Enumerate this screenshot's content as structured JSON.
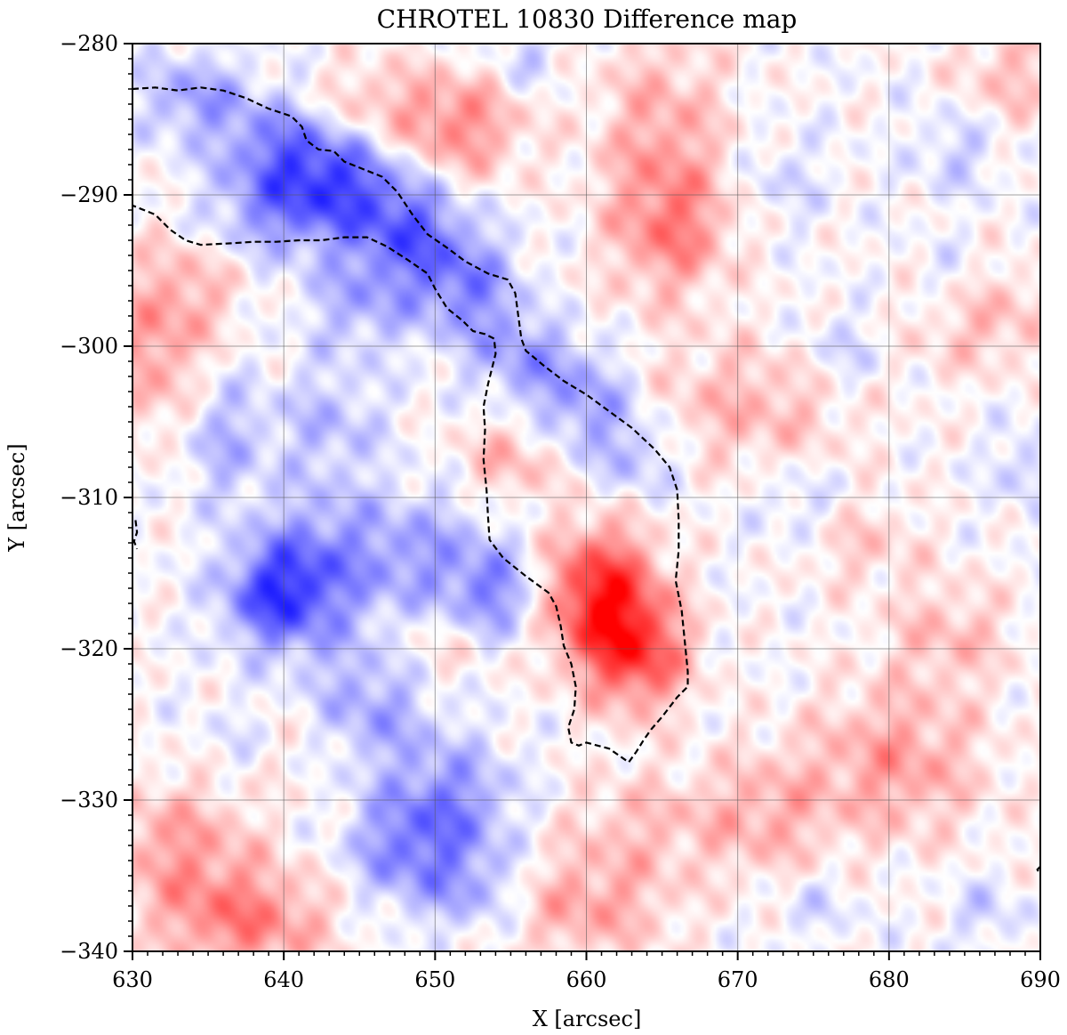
{
  "chart_data": {
    "type": "heatmap",
    "title": "CHROTEL 10830 Difference map",
    "xlabel": "X [arcsec]",
    "ylabel": "Y [arcsec]",
    "xlim": [
      630,
      690
    ],
    "ylim": [
      -340,
      -280
    ],
    "x_ticks": [
      630,
      640,
      650,
      660,
      670,
      680,
      690
    ],
    "y_ticks": [
      -280,
      -290,
      -300,
      -310,
      -320,
      -330,
      -340
    ],
    "x_tick_labels": [
      "630",
      "640",
      "650",
      "660",
      "670",
      "680",
      "690"
    ],
    "y_tick_labels": [
      "−280",
      "−290",
      "−300",
      "−310",
      "−320",
      "−330",
      "−340"
    ],
    "grid": true,
    "colormap": "bwr",
    "colors": {
      "positive": "#ff0000",
      "negative": "#0000ff",
      "zero": "#ffffff",
      "contour": "#000000",
      "grid": "#555555"
    },
    "intensity_blobs": [
      {
        "x": 661.0,
        "y": -316.5,
        "sx": 2.6,
        "sy": 3.2,
        "v": 0.85
      },
      {
        "x": 663.5,
        "y": -320.5,
        "sx": 2.4,
        "sy": 2.6,
        "v": 0.6
      },
      {
        "x": 651.5,
        "y": -285.5,
        "sx": 3.0,
        "sy": 2.5,
        "v": 0.45
      },
      {
        "x": 645.0,
        "y": -284.0,
        "sx": 3.0,
        "sy": 2.0,
        "v": 0.25
      },
      {
        "x": 665.0,
        "y": -288.0,
        "sx": 3.0,
        "sy": 6.0,
        "v": 0.38
      },
      {
        "x": 666.0,
        "y": -292.5,
        "sx": 2.5,
        "sy": 2.5,
        "v": 0.25
      },
      {
        "x": 686.0,
        "y": -298.0,
        "sx": 3.5,
        "sy": 2.5,
        "v": 0.3
      },
      {
        "x": 671.0,
        "y": -304.0,
        "sx": 5.0,
        "sy": 3.0,
        "v": 0.28
      },
      {
        "x": 680.5,
        "y": -327.5,
        "sx": 4.0,
        "sy": 3.5,
        "v": 0.38
      },
      {
        "x": 672.0,
        "y": -331.0,
        "sx": 3.0,
        "sy": 3.0,
        "v": 0.28
      },
      {
        "x": 684.0,
        "y": -319.0,
        "sx": 3.0,
        "sy": 2.5,
        "v": 0.25
      },
      {
        "x": 637.5,
        "y": -338.0,
        "sx": 4.0,
        "sy": 2.5,
        "v": 0.48
      },
      {
        "x": 633.0,
        "y": -333.0,
        "sx": 3.5,
        "sy": 3.0,
        "v": 0.35
      },
      {
        "x": 631.5,
        "y": -300.5,
        "sx": 2.5,
        "sy": 4.0,
        "v": 0.35
      },
      {
        "x": 634.0,
        "y": -296.0,
        "sx": 2.5,
        "sy": 2.5,
        "v": 0.2
      },
      {
        "x": 660.0,
        "y": -337.0,
        "sx": 4.0,
        "sy": 2.5,
        "v": 0.35
      },
      {
        "x": 655.0,
        "y": -307.5,
        "sx": 2.5,
        "sy": 2.0,
        "v": 0.3
      },
      {
        "x": 664.0,
        "y": -331.5,
        "sx": 4.0,
        "sy": 2.5,
        "v": 0.22
      },
      {
        "x": 678.0,
        "y": -313.0,
        "sx": 3.0,
        "sy": 2.0,
        "v": 0.2
      },
      {
        "x": 688.0,
        "y": -282.0,
        "sx": 2.5,
        "sy": 2.5,
        "v": 0.25
      },
      {
        "x": 641.5,
        "y": -326.0,
        "sx": 3.5,
        "sy": 2.5,
        "v": 0.15
      },
      {
        "x": 650.0,
        "y": -320.0,
        "sx": 2.5,
        "sy": 2.0,
        "v": 0.18
      },
      {
        "x": 657.0,
        "y": -298.0,
        "sx": 2.0,
        "sy": 2.0,
        "v": 0.18
      },
      {
        "x": 688.0,
        "y": -336.5,
        "sx": 2.5,
        "sy": 2.5,
        "v": 0.15
      },
      {
        "x": 634.0,
        "y": -283.5,
        "sx": 2.5,
        "sy": 2.0,
        "v": -0.35
      },
      {
        "x": 640.0,
        "y": -287.0,
        "sx": 3.0,
        "sy": 2.5,
        "v": -0.5
      },
      {
        "x": 644.0,
        "y": -289.5,
        "sx": 3.0,
        "sy": 2.5,
        "v": -0.55
      },
      {
        "x": 648.5,
        "y": -292.5,
        "sx": 2.5,
        "sy": 2.5,
        "v": -0.5
      },
      {
        "x": 652.0,
        "y": -296.0,
        "sx": 2.5,
        "sy": 2.5,
        "v": -0.42
      },
      {
        "x": 656.0,
        "y": -300.0,
        "sx": 2.5,
        "sy": 2.5,
        "v": -0.42
      },
      {
        "x": 660.0,
        "y": -304.0,
        "sx": 2.5,
        "sy": 2.5,
        "v": -0.38
      },
      {
        "x": 663.5,
        "y": -307.5,
        "sx": 2.0,
        "sy": 2.0,
        "v": -0.25
      },
      {
        "x": 639.0,
        "y": -291.5,
        "sx": 3.0,
        "sy": 2.0,
        "v": -0.3
      },
      {
        "x": 645.0,
        "y": -297.0,
        "sx": 2.5,
        "sy": 2.5,
        "v": -0.3
      },
      {
        "x": 639.5,
        "y": -316.5,
        "sx": 2.5,
        "sy": 2.5,
        "v": -0.65
      },
      {
        "x": 642.5,
        "y": -314.0,
        "sx": 3.0,
        "sy": 3.5,
        "v": -0.35
      },
      {
        "x": 649.5,
        "y": -314.0,
        "sx": 3.5,
        "sy": 3.0,
        "v": -0.35
      },
      {
        "x": 654.0,
        "y": -316.5,
        "sx": 2.0,
        "sy": 2.0,
        "v": -0.4
      },
      {
        "x": 645.5,
        "y": -324.0,
        "sx": 3.0,
        "sy": 3.0,
        "v": -0.4
      },
      {
        "x": 651.0,
        "y": -330.5,
        "sx": 3.0,
        "sy": 3.0,
        "v": -0.45
      },
      {
        "x": 647.5,
        "y": -333.5,
        "sx": 2.5,
        "sy": 2.5,
        "v": -0.35
      },
      {
        "x": 652.5,
        "y": -336.0,
        "sx": 2.5,
        "sy": 2.0,
        "v": -0.3
      },
      {
        "x": 636.0,
        "y": -306.0,
        "sx": 2.0,
        "sy": 3.0,
        "v": -0.3
      },
      {
        "x": 643.0,
        "y": -305.0,
        "sx": 2.5,
        "sy": 2.5,
        "v": -0.25
      },
      {
        "x": 687.0,
        "y": -337.0,
        "sx": 2.0,
        "sy": 2.0,
        "v": -0.3
      },
      {
        "x": 684.0,
        "y": -296.0,
        "sx": 2.0,
        "sy": 2.0,
        "v": -0.18
      },
      {
        "x": 677.0,
        "y": -300.5,
        "sx": 2.0,
        "sy": 2.0,
        "v": -0.2
      },
      {
        "x": 684.5,
        "y": -287.0,
        "sx": 2.0,
        "sy": 2.0,
        "v": -0.2
      },
      {
        "x": 674.0,
        "y": -310.5,
        "sx": 2.0,
        "sy": 2.0,
        "v": -0.18
      },
      {
        "x": 689.0,
        "y": -308.0,
        "sx": 1.5,
        "sy": 2.0,
        "v": -0.2
      },
      {
        "x": 673.0,
        "y": -289.0,
        "sx": 2.0,
        "sy": 2.0,
        "v": -0.15
      },
      {
        "x": 675.0,
        "y": -337.0,
        "sx": 2.0,
        "sy": 1.5,
        "v": -0.15
      },
      {
        "x": 656.0,
        "y": -281.0,
        "sx": 1.5,
        "sy": 1.5,
        "v": -0.2
      },
      {
        "x": 637.0,
        "y": -326.0,
        "sx": 2.0,
        "sy": 2.0,
        "v": -0.15
      }
    ],
    "contours": [
      {
        "name": "contour-upper",
        "points": [
          [
            630.0,
            -283.0
          ],
          [
            631.5,
            -282.9
          ],
          [
            633.0,
            -283.1
          ],
          [
            634.5,
            -282.9
          ],
          [
            636.0,
            -283.1
          ],
          [
            637.5,
            -283.6
          ],
          [
            639.0,
            -284.3
          ],
          [
            640.5,
            -284.8
          ],
          [
            641.2,
            -285.5
          ],
          [
            641.5,
            -286.4
          ],
          [
            642.3,
            -287.0
          ],
          [
            643.3,
            -287.1
          ],
          [
            644.0,
            -287.8
          ],
          [
            645.0,
            -288.2
          ],
          [
            646.5,
            -288.8
          ],
          [
            647.5,
            -289.8
          ],
          [
            648.5,
            -291.3
          ],
          [
            649.5,
            -292.6
          ],
          [
            650.8,
            -293.5
          ],
          [
            652.0,
            -294.4
          ],
          [
            653.5,
            -295.2
          ],
          [
            654.8,
            -295.6
          ],
          [
            655.3,
            -296.5
          ],
          [
            655.5,
            -298.0
          ],
          [
            655.7,
            -299.5
          ],
          [
            656.0,
            -300.3
          ],
          [
            657.2,
            -301.3
          ],
          [
            658.5,
            -302.3
          ],
          [
            660.0,
            -303.2
          ],
          [
            661.5,
            -304.3
          ],
          [
            663.0,
            -305.4
          ],
          [
            664.5,
            -306.8
          ],
          [
            665.5,
            -308.0
          ],
          [
            666.0,
            -309.5
          ],
          [
            666.1,
            -311.5
          ],
          [
            666.1,
            -313.5
          ],
          [
            665.9,
            -315.5
          ],
          [
            666.3,
            -317.5
          ],
          [
            666.5,
            -319.5
          ],
          [
            666.7,
            -321.5
          ],
          [
            666.7,
            -322.5
          ],
          [
            666.0,
            -323.2
          ],
          [
            665.0,
            -324.5
          ],
          [
            664.3,
            -325.3
          ],
          [
            663.8,
            -326.0
          ],
          [
            663.3,
            -326.8
          ],
          [
            662.8,
            -327.5
          ],
          [
            661.5,
            -326.6
          ],
          [
            660.0,
            -326.2
          ],
          [
            659.5,
            -326.4
          ],
          [
            659.0,
            -326.2
          ],
          [
            658.8,
            -325.2
          ],
          [
            659.2,
            -324.0
          ],
          [
            659.3,
            -322.5
          ],
          [
            659.0,
            -321.0
          ],
          [
            658.5,
            -319.8
          ],
          [
            658.3,
            -318.5
          ],
          [
            658.0,
            -317.2
          ],
          [
            657.5,
            -316.3
          ],
          [
            656.0,
            -315.2
          ],
          [
            654.5,
            -314.0
          ],
          [
            653.6,
            -312.8
          ],
          [
            653.5,
            -311.3
          ],
          [
            653.4,
            -309.5
          ],
          [
            653.2,
            -307.5
          ],
          [
            653.3,
            -305.5
          ],
          [
            653.2,
            -304.0
          ],
          [
            653.5,
            -302.5
          ],
          [
            653.8,
            -301.3
          ],
          [
            654.0,
            -300.5
          ],
          [
            653.9,
            -299.5
          ],
          [
            653.3,
            -299.2
          ],
          [
            652.5,
            -299.0
          ],
          [
            651.8,
            -298.3
          ],
          [
            650.8,
            -297.5
          ],
          [
            650.0,
            -296.2
          ],
          [
            649.5,
            -295.2
          ],
          [
            648.2,
            -294.3
          ],
          [
            646.8,
            -293.4
          ],
          [
            645.5,
            -292.8
          ],
          [
            644.0,
            -292.8
          ],
          [
            642.5,
            -293.0
          ],
          [
            641.0,
            -293.0
          ],
          [
            639.5,
            -293.1
          ],
          [
            638.0,
            -293.1
          ],
          [
            636.5,
            -293.2
          ],
          [
            634.5,
            -293.3
          ],
          [
            633.5,
            -293.0
          ],
          [
            632.5,
            -292.3
          ],
          [
            631.5,
            -291.3
          ],
          [
            630.5,
            -290.9
          ],
          [
            630.0,
            -290.7
          ]
        ]
      },
      {
        "name": "contour-left-edge",
        "points": [
          [
            630.2,
            -311.5
          ],
          [
            630.3,
            -312.3
          ],
          [
            630.1,
            -312.9
          ],
          [
            630.3,
            -313.4
          ]
        ]
      },
      {
        "name": "contour-right-edge",
        "points": [
          [
            690.0,
            -334.4
          ],
          [
            689.8,
            -334.6
          ],
          [
            690.0,
            -334.9
          ]
        ]
      }
    ]
  }
}
